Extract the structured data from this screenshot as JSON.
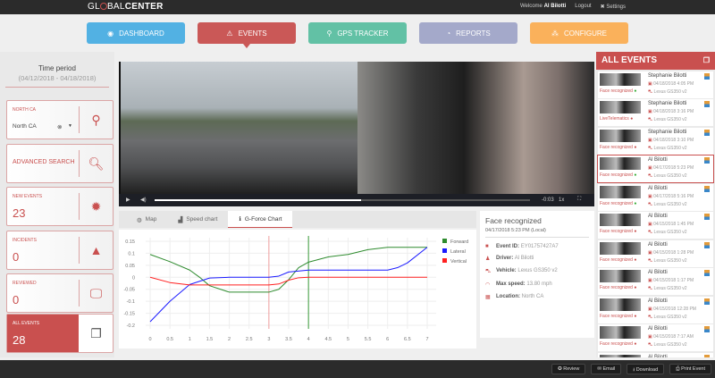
{
  "topbar": {
    "logo": "GLOBALCENTER",
    "welcome": "Welcome",
    "user": "Al Bilotti",
    "logout": "Logout",
    "settings": "Settings"
  },
  "nav": [
    {
      "label": "DASHBOARD",
      "icon": "dashboard-icon",
      "color": "#4aaee3"
    },
    {
      "label": "EVENTS",
      "icon": "warning-icon",
      "color": "#c9504f",
      "active": true
    },
    {
      "label": "GPS TRACKER",
      "icon": "map-pin-icon",
      "color": "#5bbfa2"
    },
    {
      "label": "REPORTS",
      "icon": "chart-icon",
      "color": "#a0a6c9"
    },
    {
      "label": "CONFIGURE",
      "icon": "sitemap-icon",
      "color": "#fbae54"
    }
  ],
  "sidebar": {
    "time_period": "Time period",
    "date_range": "(04/12/2018 - 04/18/2018)",
    "region": {
      "label": "NORTH CA",
      "value": "North CA"
    },
    "advanced_search": "ADVANCED SEARCH",
    "new_events": {
      "label": "NEW EVENTS",
      "value": "23"
    },
    "incidents": {
      "label": "INCIDENTS",
      "value": "0"
    },
    "reviewed": {
      "label": "REVIEWED",
      "value": "0"
    },
    "all_events": {
      "label": "ALL EVENTS",
      "value": "28"
    }
  },
  "video": {
    "time": "-0:03",
    "speed": "1x",
    "progress": 0.55
  },
  "tabs": [
    {
      "label": "Map"
    },
    {
      "label": "Speed chart"
    },
    {
      "label": "G-Force Chart",
      "active": true
    }
  ],
  "chart_data": {
    "type": "line",
    "xlim": [
      0,
      7
    ],
    "ylim": [
      -0.2,
      0.15
    ],
    "grid": true,
    "legend": "right",
    "xticks": [
      "0",
      "0.5",
      "1",
      "1.5",
      "2",
      "2.5",
      "3",
      "3.5",
      "4",
      "4.5",
      "5",
      "5.5",
      "6",
      "6.5",
      "7"
    ],
    "yticks": [
      "0.15",
      "0.1",
      "0.05",
      "0",
      "-0.05",
      "-0.1",
      "-0.15",
      "-0.2"
    ],
    "markers": [
      {
        "x": 3,
        "color": "#f0a0a0"
      },
      {
        "x": 4,
        "color": "#3a9a3a"
      }
    ],
    "series": [
      {
        "name": "Forward",
        "color": "#2e8b2e",
        "points": [
          [
            0,
            0.095
          ],
          [
            0.5,
            0.065
          ],
          [
            1,
            0.03
          ],
          [
            1.25,
            0
          ],
          [
            1.5,
            -0.035
          ],
          [
            2,
            -0.062
          ],
          [
            2.5,
            -0.062
          ],
          [
            3,
            -0.062
          ],
          [
            3.25,
            -0.05
          ],
          [
            3.5,
            -0.01
          ],
          [
            3.75,
            0.04
          ],
          [
            4,
            0.063
          ],
          [
            4.5,
            0.085
          ],
          [
            5,
            0.095
          ],
          [
            5.5,
            0.115
          ],
          [
            6,
            0.125
          ],
          [
            6.5,
            0.125
          ],
          [
            7,
            0.125
          ]
        ]
      },
      {
        "name": "Lateral",
        "color": "#1a1aff",
        "points": [
          [
            0,
            -0.185
          ],
          [
            0.5,
            -0.1
          ],
          [
            1,
            -0.03
          ],
          [
            1.5,
            -0.003
          ],
          [
            2,
            0
          ],
          [
            3,
            0
          ],
          [
            3.25,
            0.005
          ],
          [
            3.5,
            0.022
          ],
          [
            4,
            0.03
          ],
          [
            5,
            0.03
          ],
          [
            6,
            0.03
          ],
          [
            6.25,
            0.04
          ],
          [
            6.5,
            0.06
          ],
          [
            7,
            0.125
          ]
        ]
      },
      {
        "name": "Vertical",
        "color": "#ff2020",
        "points": [
          [
            0,
            0
          ],
          [
            0.5,
            -0.022
          ],
          [
            1,
            -0.032
          ],
          [
            2,
            -0.032
          ],
          [
            3,
            -0.032
          ],
          [
            3.25,
            -0.028
          ],
          [
            3.5,
            -0.012
          ],
          [
            3.75,
            -0.002
          ],
          [
            4,
            0
          ],
          [
            7,
            0
          ]
        ]
      }
    ]
  },
  "details": {
    "title": "Face recognized",
    "timestamp": "04/17/2018 5:23 PM (Local)",
    "rows": [
      {
        "label": "Event ID:",
        "value": "EY01757427A7",
        "icon": "folder-icon"
      },
      {
        "label": "Driver:",
        "value": "Al Bilotti",
        "icon": "user-icon"
      },
      {
        "label": "Vehicle:",
        "value": "Lexus GS350 v2",
        "icon": "car-icon"
      },
      {
        "label": "Max speed:",
        "value": "13.80 mph",
        "icon": "speedometer-icon"
      },
      {
        "label": "Location:",
        "value": "North CA",
        "icon": "map-icon"
      }
    ]
  },
  "events_panel": {
    "title": "ALL EVENTS",
    "items": [
      {
        "type": "Face recognized",
        "name": "Stephanie Bilotti",
        "date": "04/18/2018 4:05 PM",
        "vehicle": "Lexus GS350 v2"
      },
      {
        "type": "LiveTelematics",
        "name": "Stephanie Bilotti",
        "date": "04/18/2018 3:16 PM",
        "vehicle": "Lexus GS350 v2"
      },
      {
        "type": "Face recognized",
        "name": "Stephanie Bilotti",
        "date": "04/18/2018 3:10 PM",
        "vehicle": "Lexus GS350 v2"
      },
      {
        "type": "Face recognized",
        "name": "Al Bilotti",
        "date": "04/17/2018 5:23 PM",
        "vehicle": "Lexus GS350 v2",
        "selected": true
      },
      {
        "type": "Face recognized",
        "name": "Al Bilotti",
        "date": "04/17/2018 5:16 PM",
        "vehicle": "Lexus GS350 v2"
      },
      {
        "type": "Face recognized",
        "name": "Al Bilotti",
        "date": "04/15/2018 1:45 PM",
        "vehicle": "Lexus GS350 v2"
      },
      {
        "type": "Face recognized",
        "name": "Al Bilotti",
        "date": "04/15/2018 1:28 PM",
        "vehicle": "Lexus GS350 v2"
      },
      {
        "type": "Face recognized",
        "name": "Al Bilotti",
        "date": "04/15/2018 1:17 PM",
        "vehicle": "Lexus GS350 v2"
      },
      {
        "type": "Face recognized",
        "name": "Al Bilotti",
        "date": "04/15/2018 12:28 PM",
        "vehicle": "Lexus GS350 v2"
      },
      {
        "type": "Face recognized",
        "name": "Al Bilotti",
        "date": "04/15/2018 7:17 AM",
        "vehicle": "Lexus GS350 v2"
      },
      {
        "type": "",
        "name": "Al Bilotti",
        "date": "",
        "vehicle": ""
      }
    ]
  },
  "bottom": {
    "review": "Review",
    "email": "Email",
    "download": "Download",
    "print": "Print Event"
  }
}
